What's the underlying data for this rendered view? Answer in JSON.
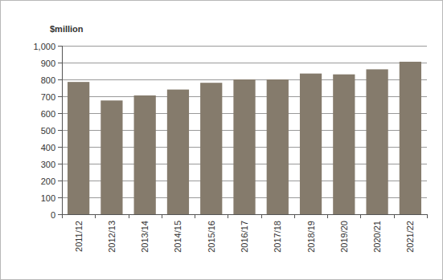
{
  "chart_data": {
    "type": "bar",
    "y_label": "$million",
    "categories": [
      "2011/12",
      "2012/13",
      "2013/14",
      "2014/15",
      "2015/16",
      "2016/17",
      "2017/18",
      "2018/19",
      "2019/20",
      "2020/21",
      "2021/22"
    ],
    "values": [
      785,
      675,
      705,
      740,
      780,
      800,
      800,
      835,
      830,
      860,
      905
    ],
    "color": "#857b6c",
    "ylim": [
      0,
      1000
    ],
    "yticks": [
      0,
      100,
      200,
      300,
      400,
      500,
      600,
      700,
      800,
      900,
      {
        "value": 1000,
        "label": "1,000"
      }
    ],
    "grid": true
  }
}
